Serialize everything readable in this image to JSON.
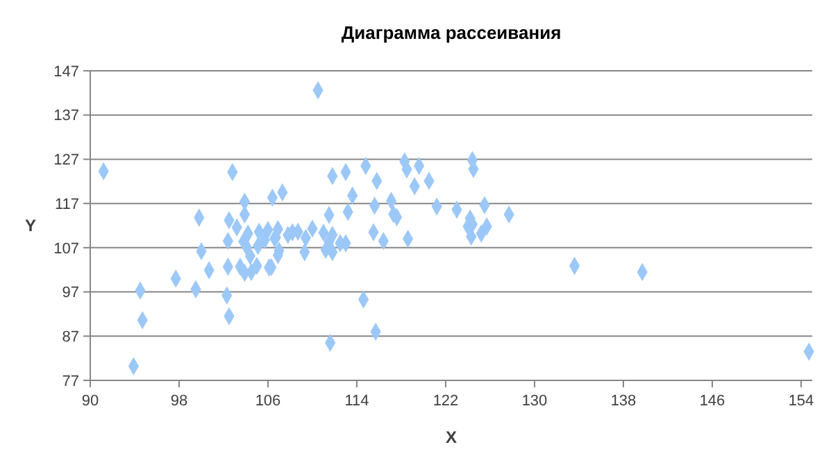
{
  "chart_data": {
    "type": "scatter",
    "title": "Диаграмма рассеивания",
    "xlabel": "X",
    "ylabel": "Y",
    "xlim": [
      90,
      155
    ],
    "xticks": [
      90,
      98,
      106,
      114,
      122,
      130,
      138,
      146,
      154
    ],
    "ylim": [
      77,
      147
    ],
    "yticks": [
      77,
      87,
      97,
      107,
      117,
      127,
      137,
      147
    ],
    "grid": "y",
    "marker": "diamond",
    "series": [
      {
        "color": "#9cc8f8",
        "x": [
          91.2,
          93.9,
          94.5,
          94.7,
          97.7,
          99.5,
          99.8,
          100,
          100.7,
          102.3,
          102.5,
          102.8,
          102.5,
          103.2,
          103.9,
          106.4,
          103.9,
          104.2,
          105.2,
          106,
          102.4,
          103.8,
          104.1,
          105.1,
          105.7,
          106.6,
          104.4,
          102.4,
          103.5,
          103.9,
          104.5,
          105,
          106.1,
          110.5,
          111.8,
          113,
          114.8,
          115.8,
          118.3,
          118.5,
          119.6,
          119.2,
          120.5,
          107.3,
          113.6,
          111.5,
          113.2,
          115.6,
          117.1,
          117.3,
          117.6,
          121.2,
          123,
          115.5,
          116.4,
          118.6,
          106.9,
          108.2,
          108.7,
          109.4,
          110,
          111,
          111.8,
          111.5,
          112.5,
          113,
          111.2,
          111.8,
          109.3,
          107,
          106.9,
          106.3,
          107.8,
          106.7,
          114.6,
          115.7,
          111.6,
          124.4,
          124.5,
          125.5,
          127.7,
          124.2,
          124,
          124.4,
          125.7,
          125.2,
          124.3,
          133.6,
          139.7,
          154.7
        ],
        "values": [
          124.3,
          80.2,
          97.3,
          90.6,
          100,
          97.6,
          113.8,
          106.2,
          101.9,
          96.2,
          91.5,
          124.1,
          113.2,
          111.6,
          117.4,
          118.3,
          114.5,
          110.2,
          110.6,
          111,
          108.5,
          108.4,
          107.1,
          107.4,
          108.7,
          109.1,
          105.1,
          102.7,
          102.7,
          101.3,
          101.5,
          102.9,
          102.5,
          142.6,
          123.2,
          124.1,
          125.5,
          122.1,
          126.5,
          124.7,
          125.5,
          120.9,
          122.1,
          119.5,
          118.8,
          114.4,
          115.1,
          116.5,
          117.6,
          114.6,
          113.9,
          116.3,
          115.6,
          110.5,
          108.5,
          109,
          111.2,
          110.5,
          110.6,
          109.2,
          111.3,
          110.4,
          109.9,
          108.4,
          108,
          108,
          106.5,
          106,
          106,
          106.3,
          105.3,
          102.6,
          109.9,
          109.3,
          95.3,
          88,
          85.5,
          126.8,
          124.8,
          116.6,
          114.5,
          113.6,
          111.8,
          112.3,
          111.8,
          110.2,
          109.5,
          102.9,
          101.5,
          83.5
        ]
      }
    ]
  }
}
